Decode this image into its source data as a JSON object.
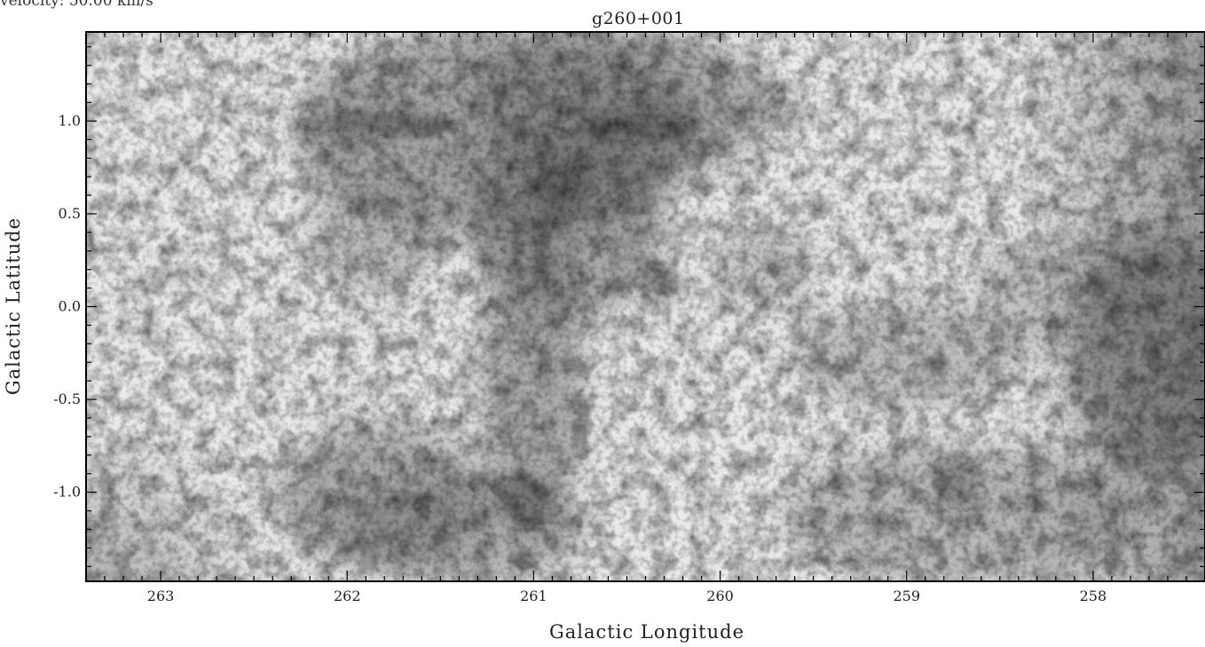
{
  "header": {
    "velocity_note": "velocity: 50.00 km/s",
    "title": "g260+001"
  },
  "axes": {
    "xlabel": "Galactic Longitude",
    "ylabel": "Galactic Latitude",
    "x_range": [
      263.4,
      257.4
    ],
    "y_range": [
      -1.48,
      1.48
    ],
    "x_ticks": [
      "263",
      "262",
      "261",
      "260",
      "259",
      "258"
    ],
    "x_tick_values": [
      263,
      262,
      261,
      260,
      259,
      258
    ],
    "y_ticks": [
      "1.0",
      "0.5",
      "0.0",
      "-0.5",
      "-1.0"
    ],
    "y_tick_values": [
      1.0,
      0.5,
      0.0,
      -0.5,
      -1.0
    ]
  },
  "image": {
    "colormap": "grayscale, dark = high intensity",
    "frame_color": "#000000"
  }
}
